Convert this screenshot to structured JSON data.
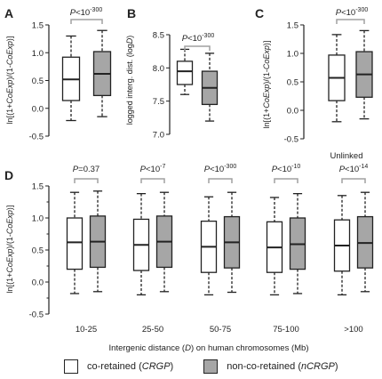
{
  "colors": {
    "white_box": "#ffffff",
    "grey_box": "#a6a6a6",
    "bracket": "#a0a0a0",
    "ink": "#222222"
  },
  "chart_data": [
    {
      "panel": "A",
      "type": "box",
      "ylabel": "ln[(1+CoExp)/(1-CoExp)]",
      "ylim": [
        -0.5,
        1.5
      ],
      "yticks": [
        "-0.5",
        "0.0",
        "0.5",
        "1.0",
        "1.5"
      ],
      "pvalue": "P<10^-300",
      "boxes": [
        {
          "group": "co-retained (CRGP)",
          "whisker_low": -0.22,
          "q1": 0.14,
          "median": 0.52,
          "q3": 0.92,
          "whisker_high": 1.3
        },
        {
          "group": "non-co-retained (nCRGP)",
          "whisker_low": -0.15,
          "q1": 0.23,
          "median": 0.62,
          "q3": 1.02,
          "whisker_high": 1.4
        }
      ]
    },
    {
      "panel": "B",
      "type": "box",
      "ylabel": "logged interg. dist. (logD)",
      "ylim": [
        7.0,
        8.5
      ],
      "yticks": [
        "7.0",
        "7.5",
        "8.0",
        "8.5"
      ],
      "pvalue": "P<10^-300",
      "boxes": [
        {
          "group": "co-retained (CRGP)",
          "whisker_low": 7.6,
          "q1": 7.75,
          "median": 7.95,
          "q3": 8.1,
          "whisker_high": 8.28
        },
        {
          "group": "non-co-retained (nCRGP)",
          "whisker_low": 7.2,
          "q1": 7.45,
          "median": 7.7,
          "q3": 7.95,
          "whisker_high": 8.22
        }
      ]
    },
    {
      "panel": "C",
      "type": "box",
      "ylabel": "ln[(1+CoExp)/(1-CoExp)]",
      "ylim": [
        -0.5,
        1.5
      ],
      "yticks": [
        "-0.5",
        "0.0",
        "0.5",
        "1.0",
        "1.5"
      ],
      "pvalue": "P<10^-300",
      "xlabel": "Unlinked",
      "boxes": [
        {
          "group": "co-retained (CRGP)",
          "whisker_low": -0.2,
          "q1": 0.17,
          "median": 0.57,
          "q3": 0.97,
          "whisker_high": 1.33
        },
        {
          "group": "non-co-retained (nCRGP)",
          "whisker_low": -0.15,
          "q1": 0.23,
          "median": 0.63,
          "q3": 1.03,
          "whisker_high": 1.4
        }
      ]
    },
    {
      "panel": "D",
      "type": "box",
      "ylabel": "ln[(1+CoExp)/(1-CoExp)]",
      "xlabel": "Intergenic distance (D) on human chromosomes (Mb)",
      "ylim": [
        -0.5,
        1.5
      ],
      "yticks": [
        "-0.5",
        "0.0",
        "0.5",
        "1.0",
        "1.5"
      ],
      "yminor": [
        "-0.25",
        "0.25",
        "0.75",
        "1.25"
      ],
      "categories": [
        "10-25",
        "25-50",
        "50-75",
        "75-100",
        ">100"
      ],
      "pvalues": [
        "P=0.37",
        "P<10^-7",
        "P<10^-300",
        "P<10^-10",
        "P<10^-14"
      ],
      "series": [
        {
          "name": "co-retained (CRGP)",
          "boxes": [
            {
              "whisker_low": -0.18,
              "q1": 0.2,
              "median": 0.62,
              "q3": 1.0,
              "whisker_high": 1.4
            },
            {
              "whisker_low": -0.2,
              "q1": 0.18,
              "median": 0.58,
              "q3": 0.98,
              "whisker_high": 1.38
            },
            {
              "whisker_low": -0.2,
              "q1": 0.15,
              "median": 0.55,
              "q3": 0.95,
              "whisker_high": 1.33
            },
            {
              "whisker_low": -0.2,
              "q1": 0.15,
              "median": 0.54,
              "q3": 0.94,
              "whisker_high": 1.32
            },
            {
              "whisker_low": -0.2,
              "q1": 0.17,
              "median": 0.57,
              "q3": 0.97,
              "whisker_high": 1.35
            }
          ]
        },
        {
          "name": "non-co-retained (nCRGP)",
          "boxes": [
            {
              "whisker_low": -0.15,
              "q1": 0.23,
              "median": 0.63,
              "q3": 1.03,
              "whisker_high": 1.42
            },
            {
              "whisker_low": -0.15,
              "q1": 0.23,
              "median": 0.63,
              "q3": 1.03,
              "whisker_high": 1.4
            },
            {
              "whisker_low": -0.16,
              "q1": 0.22,
              "median": 0.62,
              "q3": 1.02,
              "whisker_high": 1.4
            },
            {
              "whisker_low": -0.18,
              "q1": 0.2,
              "median": 0.59,
              "q3": 1.0,
              "whisker_high": 1.38
            },
            {
              "whisker_low": -0.15,
              "q1": 0.22,
              "median": 0.61,
              "q3": 1.02,
              "whisker_high": 1.4
            }
          ]
        }
      ]
    }
  ],
  "legend": {
    "co_label": "co-retained (",
    "co_abbr": "CRGP",
    "nco_label": "non-co-retained (",
    "nco_abbr": "nCRGP",
    "close": ")"
  }
}
